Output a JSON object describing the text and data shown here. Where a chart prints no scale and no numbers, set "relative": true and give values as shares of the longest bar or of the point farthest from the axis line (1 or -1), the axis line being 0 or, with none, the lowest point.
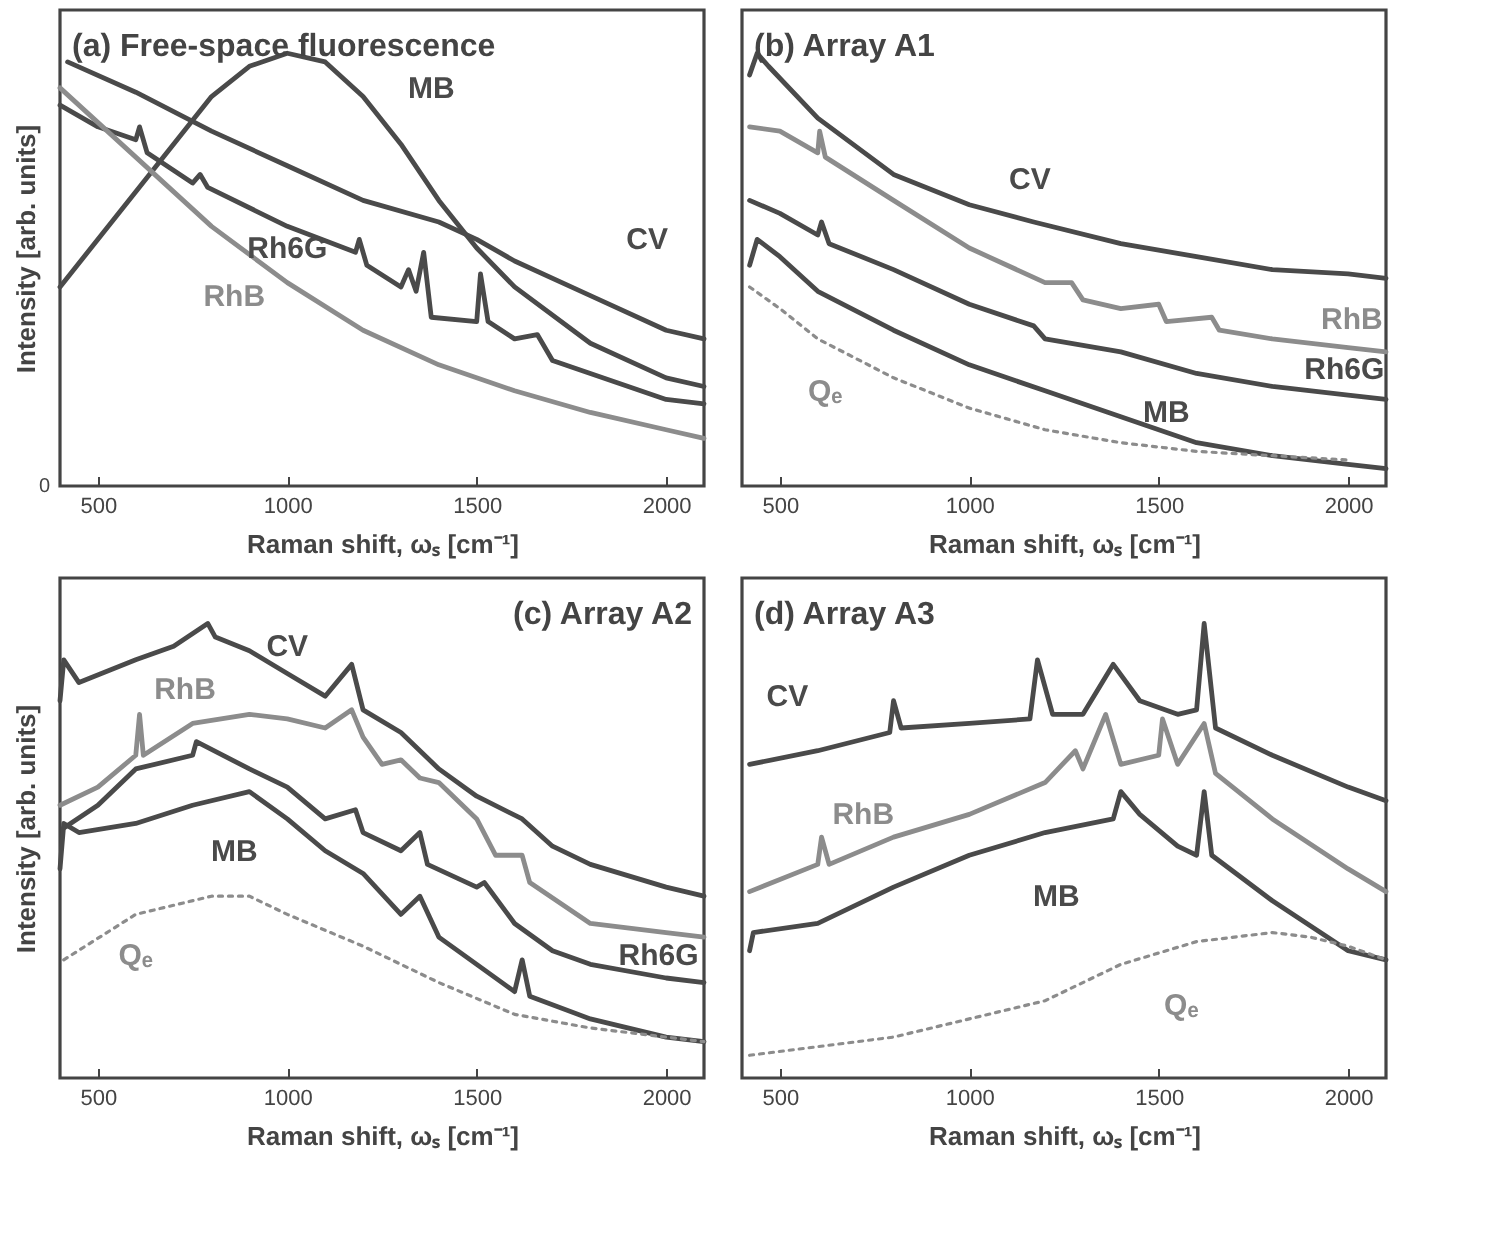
{
  "chart_data": [
    {
      "type": "line",
      "title": "(a) Free-space fluorescence",
      "xlabel": "Raman shift, ωₛ [cm⁻¹]",
      "ylabel": "Intensity [arb. units]",
      "relative": true,
      "xlim": [
        400,
        2100
      ],
      "xticks": [
        500,
        1000,
        1500,
        2000
      ],
      "annotations": [
        "0"
      ],
      "series": [
        {
          "name": "MB",
          "color": "#4a4a4a",
          "x": [
            400,
            600,
            800,
            900,
            1000,
            1100,
            1200,
            1300,
            1400,
            1500,
            1600,
            1800,
            2000,
            2100
          ],
          "values": [
            0.46,
            0.68,
            0.9,
            0.97,
            1.0,
            0.98,
            0.9,
            0.79,
            0.66,
            0.55,
            0.46,
            0.33,
            0.25,
            0.23
          ]
        },
        {
          "name": "CV",
          "color": "#4a4a4a",
          "x": [
            420,
            600,
            800,
            1000,
            1200,
            1400,
            1500,
            1600,
            1800,
            2000,
            2100
          ],
          "values": [
            0.98,
            0.91,
            0.82,
            0.74,
            0.66,
            0.61,
            0.57,
            0.52,
            0.44,
            0.36,
            0.34
          ]
        },
        {
          "name": "Rh6G",
          "color": "#4a4a4a",
          "x": [
            400,
            500,
            600,
            610,
            630,
            750,
            770,
            790,
            1000,
            1180,
            1190,
            1210,
            1300,
            1320,
            1340,
            1360,
            1380,
            1500,
            1510,
            1530,
            1600,
            1660,
            1700,
            2000,
            2100
          ],
          "values": [
            0.88,
            0.83,
            0.8,
            0.83,
            0.77,
            0.7,
            0.72,
            0.69,
            0.6,
            0.54,
            0.57,
            0.51,
            0.46,
            0.5,
            0.45,
            0.54,
            0.39,
            0.38,
            0.49,
            0.38,
            0.34,
            0.35,
            0.29,
            0.2,
            0.19
          ]
        },
        {
          "name": "RhB",
          "color": "#8c8c8c",
          "x": [
            400,
            600,
            800,
            1000,
            1200,
            1400,
            1600,
            1800,
            2000,
            2100
          ],
          "values": [
            0.92,
            0.76,
            0.6,
            0.47,
            0.36,
            0.28,
            0.22,
            0.17,
            0.13,
            0.11
          ]
        }
      ]
    },
    {
      "type": "line",
      "title": "(b) Array A1",
      "xlabel": "Raman shift, ωₛ [cm⁻¹]",
      "relative": true,
      "xlim": [
        400,
        2100
      ],
      "xticks": [
        500,
        1000,
        1500,
        2000
      ],
      "series": [
        {
          "name": "CV",
          "color": "#4a4a4a",
          "x": [
            420,
            440,
            470,
            600,
            800,
            1000,
            1170,
            1400,
            1600,
            1800,
            2000,
            2100
          ],
          "values": [
            0.95,
            1.0,
            0.97,
            0.85,
            0.72,
            0.65,
            0.61,
            0.56,
            0.53,
            0.5,
            0.49,
            0.48
          ]
        },
        {
          "name": "RhB",
          "color": "#8c8c8c",
          "x": [
            420,
            500,
            600,
            605,
            620,
            800,
            1000,
            1200,
            1270,
            1300,
            1400,
            1500,
            1520,
            1640,
            1660,
            1800,
            2000,
            2100
          ],
          "values": [
            0.83,
            0.82,
            0.77,
            0.82,
            0.76,
            0.66,
            0.55,
            0.47,
            0.47,
            0.43,
            0.41,
            0.42,
            0.38,
            0.39,
            0.36,
            0.34,
            0.32,
            0.31
          ]
        },
        {
          "name": "Rh6G",
          "color": "#4a4a4a",
          "x": [
            420,
            500,
            600,
            610,
            630,
            800,
            1000,
            1170,
            1200,
            1400,
            1600,
            1800,
            2000,
            2100
          ],
          "values": [
            0.66,
            0.63,
            0.58,
            0.61,
            0.56,
            0.5,
            0.42,
            0.37,
            0.34,
            0.31,
            0.26,
            0.23,
            0.21,
            0.2
          ]
        },
        {
          "name": "MB",
          "color": "#4a4a4a",
          "x": [
            420,
            440,
            500,
            600,
            800,
            1000,
            1200,
            1400,
            1600,
            1800,
            2000,
            2100
          ],
          "values": [
            0.51,
            0.57,
            0.53,
            0.45,
            0.36,
            0.28,
            0.22,
            0.16,
            0.1,
            0.07,
            0.05,
            0.04
          ]
        },
        {
          "name": "Qₑ",
          "color": "#8c8c8c",
          "line_style": "dotted",
          "x": [
            420,
            500,
            600,
            800,
            1000,
            1200,
            1400,
            1600,
            1800,
            2000
          ],
          "values": [
            0.46,
            0.41,
            0.34,
            0.25,
            0.18,
            0.13,
            0.1,
            0.08,
            0.07,
            0.06
          ]
        }
      ]
    },
    {
      "type": "line",
      "title": "(c) Array A2",
      "xlabel": "Raman shift, ωₛ [cm⁻¹]",
      "ylabel": "Intensity [arb. units]",
      "relative": true,
      "xlim": [
        400,
        2100
      ],
      "xticks": [
        500,
        1000,
        1500,
        2000
      ],
      "series": [
        {
          "name": "CV",
          "color": "#4a4a4a",
          "x": [
            400,
            410,
            450,
            600,
            700,
            790,
            810,
            900,
            1000,
            1100,
            1170,
            1200,
            1300,
            1400,
            1500,
            1620,
            1700,
            1800,
            2000,
            2100
          ],
          "values": [
            0.83,
            0.92,
            0.87,
            0.92,
            0.95,
            1.0,
            0.97,
            0.94,
            0.89,
            0.84,
            0.91,
            0.81,
            0.76,
            0.68,
            0.62,
            0.57,
            0.51,
            0.47,
            0.42,
            0.4
          ]
        },
        {
          "name": "RhB",
          "color": "#8c8c8c",
          "x": [
            400,
            500,
            600,
            610,
            620,
            750,
            900,
            1000,
            1100,
            1170,
            1200,
            1250,
            1300,
            1350,
            1400,
            1500,
            1550,
            1620,
            1640,
            1800,
            2000,
            2100
          ],
          "values": [
            0.6,
            0.64,
            0.71,
            0.8,
            0.71,
            0.78,
            0.8,
            0.79,
            0.77,
            0.81,
            0.75,
            0.69,
            0.7,
            0.66,
            0.65,
            0.57,
            0.49,
            0.49,
            0.43,
            0.34,
            0.32,
            0.31
          ]
        },
        {
          "name": "Rh6G",
          "color": "#4a4a4a",
          "x": [
            410,
            500,
            600,
            750,
            760,
            900,
            1000,
            1100,
            1180,
            1200,
            1300,
            1350,
            1370,
            1500,
            1520,
            1600,
            1700,
            1800,
            2000,
            2100
          ],
          "values": [
            0.55,
            0.6,
            0.68,
            0.71,
            0.74,
            0.68,
            0.64,
            0.57,
            0.59,
            0.54,
            0.5,
            0.54,
            0.47,
            0.42,
            0.43,
            0.34,
            0.28,
            0.25,
            0.22,
            0.21
          ]
        },
        {
          "name": "MB",
          "color": "#4a4a4a",
          "x": [
            400,
            410,
            450,
            600,
            750,
            900,
            1000,
            1100,
            1200,
            1300,
            1350,
            1400,
            1500,
            1600,
            1620,
            1640,
            1800,
            2000,
            2100
          ],
          "values": [
            0.46,
            0.56,
            0.54,
            0.56,
            0.6,
            0.63,
            0.57,
            0.5,
            0.45,
            0.36,
            0.4,
            0.31,
            0.25,
            0.19,
            0.26,
            0.18,
            0.13,
            0.09,
            0.08
          ]
        },
        {
          "name": "Qₑ",
          "color": "#8c8c8c",
          "line_style": "dotted",
          "x": [
            410,
            600,
            800,
            900,
            1000,
            1200,
            1400,
            1600,
            1800,
            2000,
            2100
          ],
          "values": [
            0.26,
            0.36,
            0.4,
            0.4,
            0.36,
            0.29,
            0.21,
            0.14,
            0.11,
            0.09,
            0.08
          ]
        }
      ]
    },
    {
      "type": "line",
      "title": "(d) Array A3",
      "xlabel": "Raman shift, ωₛ [cm⁻¹]",
      "relative": true,
      "xlim": [
        400,
        2100
      ],
      "xticks": [
        500,
        1000,
        1500,
        2000
      ],
      "series": [
        {
          "name": "CV",
          "color": "#4a4a4a",
          "x": [
            420,
            600,
            790,
            800,
            820,
            1000,
            1160,
            1180,
            1220,
            1300,
            1380,
            1450,
            1550,
            1600,
            1620,
            1650,
            1800,
            2000,
            2100
          ],
          "values": [
            0.69,
            0.72,
            0.76,
            0.83,
            0.77,
            0.78,
            0.79,
            0.92,
            0.8,
            0.8,
            0.91,
            0.83,
            0.8,
            0.81,
            1.0,
            0.77,
            0.71,
            0.64,
            0.61
          ]
        },
        {
          "name": "RhB",
          "color": "#8c8c8c",
          "x": [
            420,
            600,
            610,
            630,
            800,
            1000,
            1200,
            1280,
            1300,
            1360,
            1400,
            1500,
            1510,
            1550,
            1620,
            1650,
            1800,
            2000,
            2100
          ],
          "values": [
            0.41,
            0.47,
            0.53,
            0.47,
            0.53,
            0.58,
            0.65,
            0.72,
            0.68,
            0.8,
            0.69,
            0.71,
            0.79,
            0.69,
            0.78,
            0.67,
            0.57,
            0.46,
            0.41
          ]
        },
        {
          "name": "MB",
          "color": "#4a4a4a",
          "x": [
            420,
            430,
            600,
            800,
            1000,
            1200,
            1380,
            1400,
            1450,
            1550,
            1600,
            1620,
            1640,
            1800,
            2000,
            2100
          ],
          "values": [
            0.28,
            0.32,
            0.34,
            0.42,
            0.49,
            0.54,
            0.57,
            0.63,
            0.58,
            0.51,
            0.49,
            0.63,
            0.49,
            0.39,
            0.28,
            0.26
          ]
        },
        {
          "name": "Qₑ",
          "color": "#8c8c8c",
          "line_style": "dotted",
          "x": [
            420,
            800,
            1000,
            1200,
            1400,
            1600,
            1800,
            1900,
            2000,
            2100
          ],
          "values": [
            0.05,
            0.09,
            0.13,
            0.17,
            0.25,
            0.3,
            0.32,
            0.31,
            0.29,
            0.26
          ]
        }
      ]
    }
  ]
}
